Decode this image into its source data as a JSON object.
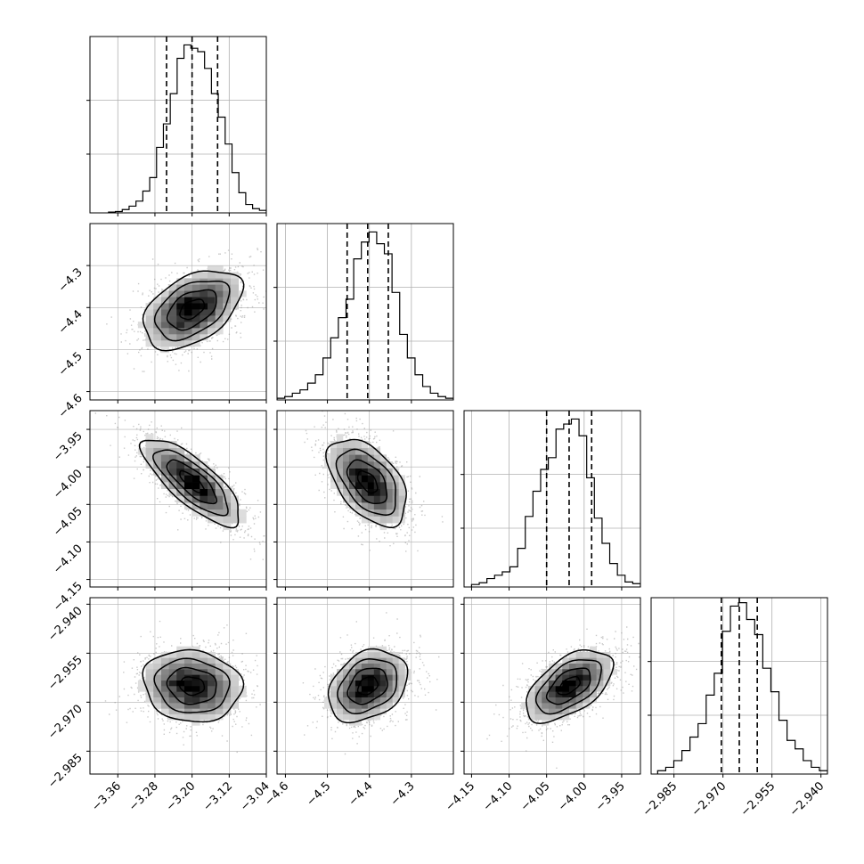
{
  "chart_data": {
    "type": "corner",
    "grid": true,
    "parameters": [
      {
        "range": [
          -3.42,
          -3.04
        ],
        "ticks": [
          -3.36,
          -3.28,
          -3.2,
          -3.12,
          -3.04
        ],
        "tick_labels": [
          "−3.36",
          "−3.28",
          "−3.20",
          "−3.12",
          "−3.04"
        ],
        "quantiles": [
          -3.255,
          -3.2,
          -3.145
        ],
        "hist": [
          0.005,
          0.008,
          0.02,
          0.04,
          0.07,
          0.13,
          0.21,
          0.39,
          0.53,
          0.71,
          0.92,
          1.0,
          0.98,
          0.96,
          0.86,
          0.71,
          0.57,
          0.41,
          0.24,
          0.12,
          0.05,
          0.025,
          0.015
        ],
        "hist_range": [
          -3.38,
          -3.04
        ]
      },
      {
        "range": [
          -4.62,
          -4.2
        ],
        "ticks": [
          -4.6,
          -4.5,
          -4.4,
          -4.3
        ],
        "tick_labels": [
          "−4.6",
          "−4.5",
          "−4.4",
          "−4.3"
        ],
        "quantiles": [
          -4.453,
          -4.404,
          -4.355
        ],
        "hist": [
          0.01,
          0.02,
          0.04,
          0.06,
          0.1,
          0.15,
          0.25,
          0.37,
          0.49,
          0.6,
          0.84,
          0.94,
          1.0,
          0.93,
          0.87,
          0.64,
          0.39,
          0.25,
          0.15,
          0.08,
          0.04,
          0.02,
          0.01
        ],
        "hist_range": [
          -4.62,
          -4.2
        ]
      },
      {
        "range": [
          -4.16,
          -3.925
        ],
        "ticks": [
          -4.15,
          -4.1,
          -4.05,
          -4.0,
          -3.95
        ],
        "tick_labels": [
          "−4.15",
          "−4.10",
          "−4.05",
          "−4.00",
          "−3.95"
        ],
        "quantiles": [
          -4.05,
          -4.02,
          -3.99
        ],
        "hist": [
          0.015,
          0.025,
          0.05,
          0.07,
          0.09,
          0.12,
          0.23,
          0.42,
          0.57,
          0.7,
          0.77,
          0.94,
          0.97,
          1.0,
          0.9,
          0.65,
          0.41,
          0.26,
          0.14,
          0.07,
          0.03,
          0.02
        ],
        "hist_range": [
          -4.15,
          -3.925
        ]
      },
      {
        "range": [
          -2.992,
          -2.938
        ],
        "ticks": [
          -2.985,
          -2.97,
          -2.955,
          -2.94
        ],
        "tick_labels": [
          "−2.985",
          "−2.970",
          "−2.955",
          "−2.940"
        ],
        "quantiles": [
          -2.9705,
          -2.965,
          -2.9595
        ],
        "hist": [
          0.02,
          0.04,
          0.08,
          0.14,
          0.22,
          0.3,
          0.47,
          0.6,
          0.85,
          1.0,
          1.02,
          0.92,
          0.83,
          0.63,
          0.49,
          0.32,
          0.2,
          0.15,
          0.08,
          0.04,
          0.02
        ],
        "hist_range": [
          -2.99,
          -2.938
        ]
      }
    ],
    "correlations": {
      "1,0": 0.45,
      "2,0": -0.78,
      "2,1": -0.5,
      "3,0": -0.1,
      "3,1": 0.3,
      "3,2": 0.55
    },
    "means": [
      -3.2,
      -4.404,
      -4.02,
      -2.965
    ],
    "sigmas": [
      0.053,
      0.047,
      0.029,
      0.0055
    ],
    "contour_levels_sigma": [
      0.5,
      1.0,
      1.5,
      2.0
    ],
    "colors": {
      "line": "#000000",
      "grid": "#b0b0b0",
      "scatter": "#888888"
    }
  }
}
